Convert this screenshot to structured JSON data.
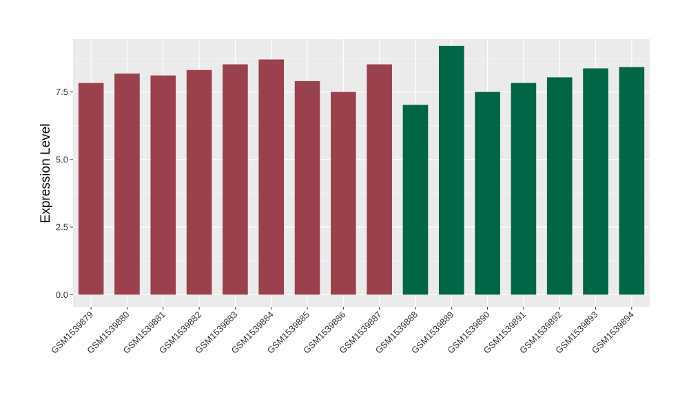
{
  "chart_data": {
    "type": "bar",
    "ylabel": "Expression Level",
    "xlabel": "",
    "ylim": [
      -0.45,
      9.45
    ],
    "yticks": [
      0.0,
      2.5,
      5.0,
      7.5
    ],
    "ytick_labels": [
      "0.0",
      "2.5",
      "5.0",
      "7.5"
    ],
    "grid": true,
    "categories": [
      "GSM1539879",
      "GSM1539880",
      "GSM1539881",
      "GSM1539882",
      "GSM1539883",
      "GSM1539884",
      "GSM1539885",
      "GSM1539886",
      "GSM1539887",
      "GSM1539888",
      "GSM1539889",
      "GSM1539890",
      "GSM1539891",
      "GSM1539892",
      "GSM1539893",
      "GSM1539894"
    ],
    "values": [
      7.83,
      8.18,
      8.11,
      8.31,
      8.52,
      8.7,
      7.9,
      7.5,
      8.52,
      7.02,
      9.2,
      7.5,
      7.83,
      8.04,
      8.37,
      8.42
    ],
    "bar_colors": [
      "#9b414e",
      "#9b414e",
      "#9b414e",
      "#9b414e",
      "#9b414e",
      "#9b414e",
      "#9b414e",
      "#9b414e",
      "#9b414e",
      "#006645",
      "#006645",
      "#006645",
      "#006645",
      "#006645",
      "#006645",
      "#006645"
    ],
    "panel_background": "#ebebeb",
    "grid_color": "#ffffff"
  }
}
